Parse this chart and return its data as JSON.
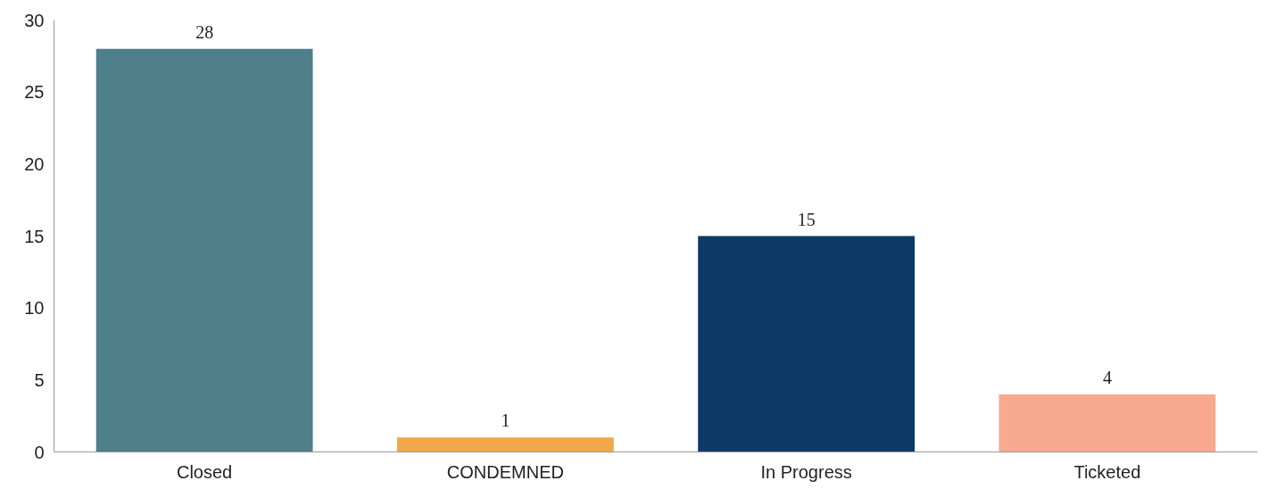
{
  "chart_data": {
    "type": "bar",
    "categories": [
      "Closed",
      "CONDEMNED",
      "In Progress",
      "Ticketed"
    ],
    "values": [
      28,
      1,
      15,
      4
    ],
    "colors": [
      "#4e7f8b",
      "#f0a848",
      "#0d3a66",
      "#f9a98f"
    ],
    "ylim": [
      0,
      30
    ],
    "yticks": [
      0,
      5,
      10,
      15,
      20,
      25,
      30
    ],
    "data_labels": true
  }
}
